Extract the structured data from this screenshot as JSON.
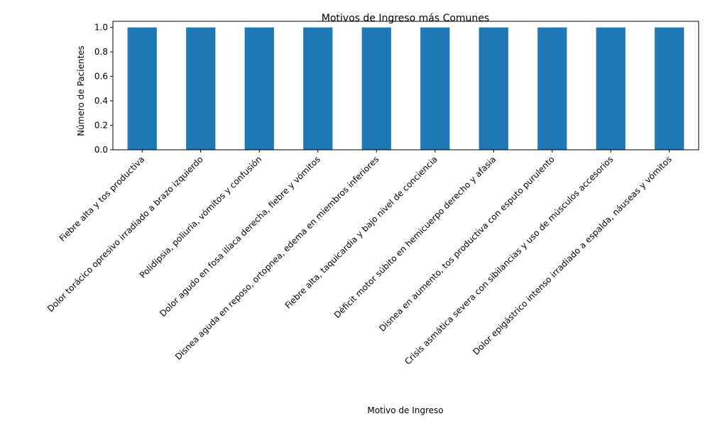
{
  "chart_data": {
    "type": "bar",
    "title": "Motivos de Ingreso más Comunes",
    "xlabel": "Motivo de Ingreso",
    "ylabel": "Número de Pacientes",
    "ylim": [
      0,
      1.05
    ],
    "yticks": [
      "0.0",
      "0.2",
      "0.4",
      "0.6",
      "0.8",
      "1.0"
    ],
    "grid": false,
    "bar_color": "#1f77b4",
    "categories": [
      "Fiebre alta y tos productiva",
      "Dolor torácico opresivo irradiado a brazo izquierdo",
      "Polidipsia, poliuria, vómitos y confusión",
      "Dolor agudo en fosa ilíaca derecha, fiebre y vómitos",
      "Disnea aguda en reposo, ortopnea, edema en miembros inferiores",
      "Fiebre alta, taquicardia y bajo nivel de conciencia",
      "Déficit motor súbito en hemicuerpo derecho y afasia",
      "Disnea en aumento, tos productiva con esputo purulento",
      "Crisis asmática severa con sibilancias y uso de músculos accesorios",
      "Dolor epigástrico intenso irradiado a espalda, náuseas y vómitos"
    ],
    "values": [
      1,
      1,
      1,
      1,
      1,
      1,
      1,
      1,
      1,
      1
    ]
  }
}
